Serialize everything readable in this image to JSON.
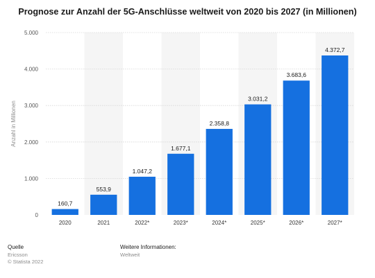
{
  "chart_data": {
    "type": "bar",
    "title": "Prognose zur Anzahl der 5G-Anschlüsse weltweit von 2020 bis 2027 (in Millionen)",
    "xlabel": "",
    "ylabel": "Anzahl in Millionen",
    "categories": [
      "2020",
      "2021",
      "2022*",
      "2023*",
      "2024*",
      "2025*",
      "2026*",
      "2027*"
    ],
    "values": [
      160.7,
      553.9,
      1047.2,
      1677.1,
      2358.8,
      3031.2,
      3683.6,
      4372.7
    ],
    "value_labels": [
      "160,7",
      "553,9",
      "1.047,2",
      "1.677,1",
      "2.358,8",
      "3.031,2",
      "3.683,6",
      "4.372,7"
    ],
    "ylim": [
      0,
      5000
    ],
    "yticks": [
      0,
      1000,
      2000,
      3000,
      4000,
      5000
    ],
    "ytick_labels": [
      "0",
      "1.000",
      "2.000",
      "3.000",
      "4.000",
      "5.000"
    ],
    "grid": true,
    "bar_color": "#1570e0",
    "alt_band_color": "#f5f5f5",
    "grid_color": "#d6d6d6"
  },
  "footer": {
    "source_label": "Quelle",
    "source_text": "Ericsson",
    "copyright": "© Statista 2022",
    "info_label": "Weitere Informationen:",
    "info_text": "Weltweit"
  }
}
